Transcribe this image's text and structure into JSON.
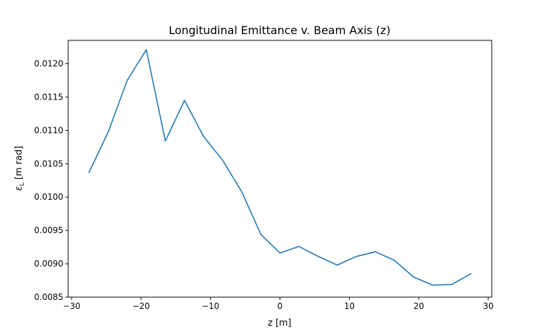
{
  "chart_data": {
    "type": "line",
    "title": "Longitudinal Emittance v. Beam Axis (z)",
    "xlabel": "z [m]",
    "ylabel_symbol": "ε",
    "ylabel_subscript": "L",
    "ylabel_unit": " [m rad]",
    "xlim": [
      -30.5,
      30.5
    ],
    "ylim": [
      0.0085,
      0.01235
    ],
    "xticks": [
      -30,
      -20,
      -10,
      0,
      10,
      20,
      30
    ],
    "xtick_labels": [
      "−30",
      "−20",
      "−10",
      "0",
      "10",
      "20",
      "30"
    ],
    "yticks": [
      0.0085,
      0.009,
      0.0095,
      0.01,
      0.0105,
      0.011,
      0.0115,
      0.012
    ],
    "ytick_labels": [
      "0.0085",
      "0.0090",
      "0.0095",
      "0.0100",
      "0.0105",
      "0.0110",
      "0.0115",
      "0.0120"
    ],
    "grid": false,
    "series": [
      {
        "color": "#1f77b4",
        "x": [
          -27.5,
          -24.75,
          -22.0,
          -19.25,
          -16.5,
          -13.75,
          -11.0,
          -8.25,
          -5.5,
          -2.75,
          0.0,
          2.75,
          5.5,
          8.25,
          11.0,
          13.75,
          16.5,
          19.25,
          22.0,
          24.75,
          27.5
        ],
        "y": [
          0.01037,
          0.01097,
          0.01175,
          0.01221,
          0.01084,
          0.01145,
          0.01091,
          0.01055,
          0.01008,
          0.00944,
          0.00916,
          0.00926,
          0.00911,
          0.00898,
          0.00911,
          0.00918,
          0.00905,
          0.0088,
          0.00868,
          0.00869,
          0.00885
        ]
      }
    ]
  }
}
